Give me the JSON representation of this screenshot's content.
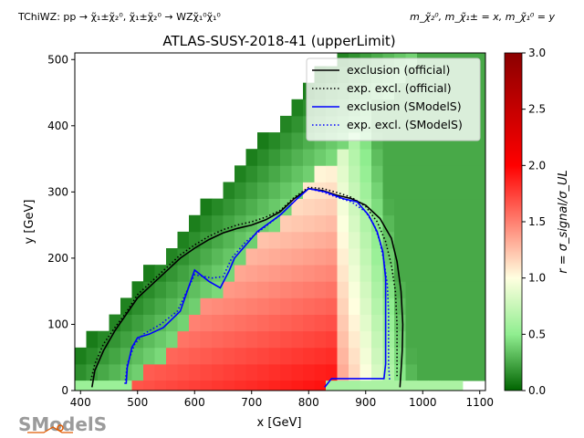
{
  "header": {
    "process": "TChiWZ: pp → χ̃₁±χ̃₂⁰, χ̃₁±χ̃₂⁰ → WZχ̃₁⁰χ̃₁⁰",
    "mass_assignment": "m_χ̃₂⁰, m_χ̃₁± = x, m_χ̃₁⁰ = y"
  },
  "logo": {
    "text": "SModelS"
  },
  "chart_data": {
    "type": "heatmap",
    "title": "ATLAS-SUSY-2018-41 (upperLimit)",
    "xlabel": "x [GeV]",
    "ylabel": "y [GeV]",
    "xlim": [
      390,
      1110
    ],
    "ylim": [
      0,
      510
    ],
    "xticks": [
      400,
      500,
      600,
      700,
      800,
      900,
      1000,
      1100
    ],
    "yticks": [
      0,
      100,
      200,
      300,
      400,
      500
    ],
    "colorbar": {
      "label": "r = σ_signal/σ_UL",
      "range": [
        0.0,
        3.0
      ],
      "ticks": [
        0.0,
        0.5,
        1.0,
        1.5,
        2.0,
        2.5,
        3.0
      ],
      "colors": [
        "#006400",
        "#90ee90",
        "#ffffe0",
        "#ff0000",
        "#8b0000"
      ]
    },
    "grid": false,
    "legend": {
      "position": "top-right",
      "entries": [
        {
          "label": "exclusion (official)",
          "color": "#000000",
          "style": "solid"
        },
        {
          "label": "exp. excl. (official)",
          "color": "#000000",
          "style": "dotted"
        },
        {
          "label": "exclusion (SModelS)",
          "color": "#0000ff",
          "style": "solid"
        },
        {
          "label": "exp. excl. (SModelS)",
          "color": "#0000ff",
          "style": "dotted"
        }
      ]
    },
    "heatmap": {
      "x_min": 390,
      "x_bin": 20,
      "nx": 36,
      "y_min": 15,
      "y_bin": 25,
      "ny": 20
    },
    "curves": [
      {
        "name": "exclusion (official)",
        "color": "#000000",
        "style": "solid",
        "points": [
          [
            420,
            5
          ],
          [
            425,
            30
          ],
          [
            440,
            60
          ],
          [
            460,
            90
          ],
          [
            480,
            115
          ],
          [
            500,
            140
          ],
          [
            525,
            160
          ],
          [
            550,
            180
          ],
          [
            575,
            200
          ],
          [
            600,
            215
          ],
          [
            625,
            228
          ],
          [
            650,
            238
          ],
          [
            675,
            245
          ],
          [
            700,
            250
          ],
          [
            725,
            258
          ],
          [
            750,
            270
          ],
          [
            775,
            290
          ],
          [
            800,
            305
          ],
          [
            825,
            302
          ],
          [
            850,
            295
          ],
          [
            875,
            290
          ],
          [
            900,
            280
          ],
          [
            925,
            260
          ],
          [
            945,
            230
          ],
          [
            955,
            195
          ],
          [
            962,
            150
          ],
          [
            965,
            100
          ],
          [
            964,
            60
          ],
          [
            962,
            30
          ],
          [
            960,
            5
          ]
        ]
      },
      {
        "name": "exp. excl. (official)",
        "color": "#000000",
        "style": "dotted",
        "points": [
          [
            418,
            15
          ],
          [
            425,
            40
          ],
          [
            440,
            70
          ],
          [
            460,
            95
          ],
          [
            480,
            118
          ],
          [
            500,
            145
          ],
          [
            525,
            165
          ],
          [
            550,
            185
          ],
          [
            575,
            205
          ],
          [
            600,
            220
          ],
          [
            625,
            233
          ],
          [
            650,
            243
          ],
          [
            675,
            250
          ],
          [
            700,
            255
          ],
          [
            725,
            262
          ],
          [
            750,
            272
          ],
          [
            775,
            292
          ],
          [
            800,
            307
          ],
          [
            825,
            305
          ],
          [
            850,
            299
          ],
          [
            875,
            292
          ],
          [
            900,
            278
          ],
          [
            920,
            255
          ],
          [
            935,
            225
          ],
          [
            945,
            190
          ],
          [
            952,
            150
          ],
          [
            955,
            100
          ],
          [
            955,
            50
          ],
          [
            955,
            20
          ]
        ]
      },
      {
        "name": "exclusion (SModelS)",
        "color": "#0000ff",
        "style": "solid",
        "points": [
          [
            480,
            10
          ],
          [
            482,
            35
          ],
          [
            490,
            65
          ],
          [
            500,
            80
          ],
          [
            520,
            85
          ],
          [
            545,
            95
          ],
          [
            575,
            120
          ],
          [
            600,
            182
          ],
          [
            625,
            165
          ],
          [
            645,
            155
          ],
          [
            660,
            180
          ],
          [
            670,
            200
          ],
          [
            690,
            220
          ],
          [
            710,
            240
          ],
          [
            750,
            265
          ],
          [
            780,
            290
          ],
          [
            800,
            305
          ],
          [
            830,
            300
          ],
          [
            860,
            290
          ],
          [
            885,
            285
          ],
          [
            905,
            265
          ],
          [
            920,
            240
          ],
          [
            930,
            210
          ],
          [
            935,
            170
          ],
          [
            935,
            120
          ],
          [
            935,
            80
          ],
          [
            935,
            40
          ],
          [
            932,
            18
          ],
          [
            840,
            18
          ],
          [
            828,
            5
          ]
        ]
      },
      {
        "name": "exp. excl. (SModelS)",
        "color": "#0000ff",
        "style": "dotted",
        "points": [
          [
            478,
            10
          ],
          [
            482,
            40
          ],
          [
            495,
            70
          ],
          [
            510,
            85
          ],
          [
            540,
            100
          ],
          [
            570,
            120
          ],
          [
            600,
            175
          ],
          [
            630,
            170
          ],
          [
            650,
            172
          ],
          [
            665,
            200
          ],
          [
            690,
            225
          ],
          [
            720,
            245
          ],
          [
            750,
            265
          ],
          [
            780,
            290
          ],
          [
            800,
            305
          ],
          [
            825,
            300
          ],
          [
            850,
            292
          ],
          [
            875,
            285
          ],
          [
            900,
            270
          ],
          [
            915,
            250
          ],
          [
            925,
            225
          ],
          [
            932,
            195
          ],
          [
            938,
            160
          ],
          [
            940,
            120
          ],
          [
            940,
            80
          ],
          [
            940,
            40
          ],
          [
            942,
            15
          ]
        ]
      }
    ]
  }
}
